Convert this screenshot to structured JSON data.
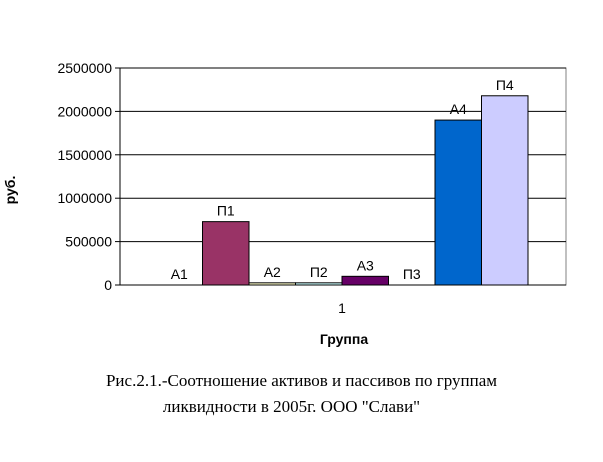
{
  "chart_data": {
    "type": "bar",
    "categories": [
      "1"
    ],
    "series": [
      {
        "name": "А1",
        "values": [
          0
        ],
        "color": "#9999ff"
      },
      {
        "name": "П1",
        "values": [
          730000
        ],
        "color": "#993366"
      },
      {
        "name": "А2",
        "values": [
          25000
        ],
        "color": "#ffffcc"
      },
      {
        "name": "П2",
        "values": [
          25000
        ],
        "color": "#ccffff"
      },
      {
        "name": "А3",
        "values": [
          100000
        ],
        "color": "#660066"
      },
      {
        "name": "П3",
        "values": [
          0
        ],
        "color": "#ff8080"
      },
      {
        "name": "А4",
        "values": [
          1900000
        ],
        "color": "#0066cc"
      },
      {
        "name": "П4",
        "values": [
          2180000
        ],
        "color": "#ccccff"
      }
    ],
    "xlabel": "Группа",
    "ylabel": "руб.",
    "ylim": [
      0,
      2500000
    ],
    "yticks": [
      "0",
      "500000",
      "1000000",
      "1500000",
      "2000000",
      "2500000"
    ],
    "grid": true,
    "legend": "none"
  },
  "caption": {
    "line1": "Рис.2.1.-Соотношение активов и пассивов по группам",
    "line2": "ликвидности в 2005г. ООО \"Слави\""
  }
}
